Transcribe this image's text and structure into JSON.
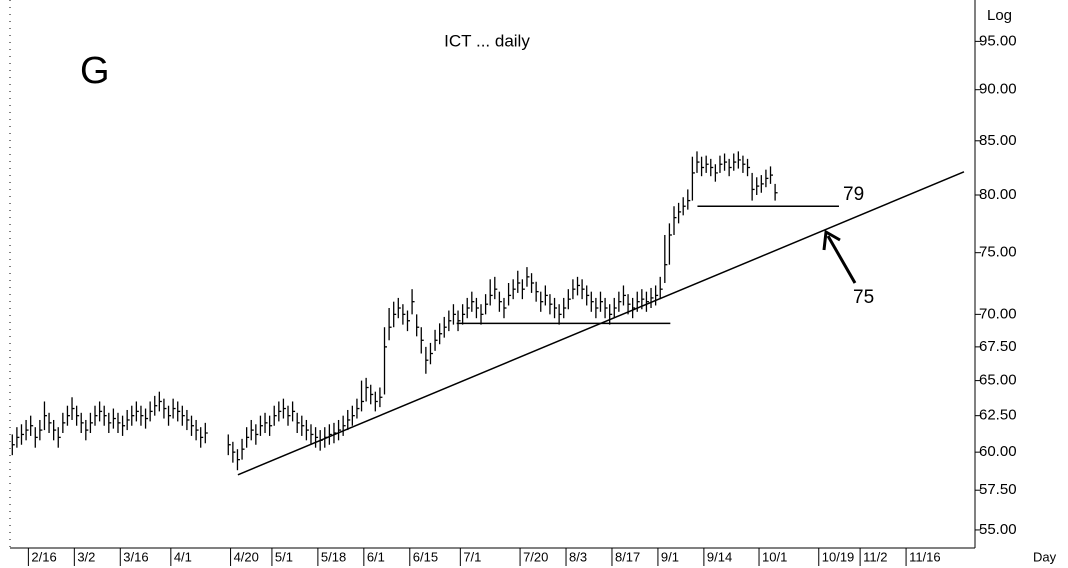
{
  "chart_data": {
    "type": "hlc",
    "title": "ICT ... daily",
    "label": "G",
    "y_axis_label": "Log",
    "x_axis_label": "Day",
    "log_scale": true,
    "color": "#000000",
    "xlim": [
      0,
      210
    ],
    "ylim": [
      53.9,
      99.5
    ],
    "xticks": [
      {
        "value": 4,
        "label": "2/16"
      },
      {
        "value": 14,
        "label": "3/2"
      },
      {
        "value": 24,
        "label": "3/16"
      },
      {
        "value": 35,
        "label": "4/1"
      },
      {
        "value": 48,
        "label": "4/20"
      },
      {
        "value": 57,
        "label": "5/1"
      },
      {
        "value": 67,
        "label": "5/18"
      },
      {
        "value": 77,
        "label": "6/1"
      },
      {
        "value": 87,
        "label": "6/15"
      },
      {
        "value": 98,
        "label": "7/1"
      },
      {
        "value": 111,
        "label": "7/20"
      },
      {
        "value": 121,
        "label": "8/3"
      },
      {
        "value": 131,
        "label": "8/17"
      },
      {
        "value": 141,
        "label": "9/1"
      },
      {
        "value": 151,
        "label": "9/14"
      },
      {
        "value": 163,
        "label": "10/1"
      },
      {
        "value": 176,
        "label": "10/19"
      },
      {
        "value": 185,
        "label": "11/2"
      },
      {
        "value": 195,
        "label": "11/16"
      }
    ],
    "yticks": [
      {
        "value": 55,
        "label": "55.00"
      },
      {
        "value": 57.5,
        "label": "57.50"
      },
      {
        "value": 60,
        "label": "60.00"
      },
      {
        "value": 62.5,
        "label": "62.50"
      },
      {
        "value": 65,
        "label": "65.00"
      },
      {
        "value": 67.5,
        "label": "67.50"
      },
      {
        "value": 70,
        "label": "70.00"
      },
      {
        "value": 75,
        "label": "75.00"
      },
      {
        "value": 80,
        "label": "80.00"
      },
      {
        "value": 85,
        "label": "85.00"
      },
      {
        "value": 90,
        "label": "90.00"
      },
      {
        "value": 95,
        "label": "95.00"
      }
    ],
    "high": [
      61.2,
      61.7,
      61.9,
      62.2,
      62.5,
      61.7,
      62.2,
      63.5,
      62.7,
      62.2,
      61.7,
      62.7,
      63.2,
      63.8,
      63.2,
      62.7,
      62.2,
      62.7,
      63.2,
      63.5,
      63.2,
      62.7,
      63,
      62.7,
      62.5,
      62.9,
      63.2,
      63.5,
      63.2,
      63,
      63.5,
      63.9,
      64.2,
      63.7,
      63.2,
      63.7,
      63.5,
      63.2,
      62.9,
      62.5,
      62.2,
      61.7,
      62,
      null,
      null,
      null,
      null,
      61.2,
      60.7,
      60.2,
      60.9,
      61.7,
      62.2,
      61.9,
      62.5,
      62.7,
      62.5,
      63.2,
      63.5,
      63.7,
      63.2,
      63.5,
      62.7,
      62.5,
      62.2,
      61.9,
      61.7,
      61.5,
      61.7,
      61.9,
      62,
      62.2,
      62.5,
      62.9,
      63.2,
      63.7,
      65,
      65.2,
      64.7,
      64.2,
      64.5,
      69,
      70.5,
      71,
      71.3,
      70.8,
      70.3,
      72,
      70,
      69,
      67.5,
      67.8,
      68.8,
      69.3,
      69.8,
      70.3,
      70.8,
      70.3,
      70.8,
      71.3,
      71.8,
      71.3,
      70.8,
      71.6,
      72.8,
      73,
      71.8,
      71.3,
      72.5,
      72.8,
      73.5,
      72.8,
      73.8,
      73.3,
      72.6,
      71.8,
      72.3,
      71.6,
      71.3,
      70.8,
      71.3,
      72,
      72.8,
      73,
      72.8,
      72.3,
      71.8,
      71.3,
      71.8,
      71.3,
      70.8,
      71.3,
      71.8,
      72.3,
      71.6,
      71.3,
      71.8,
      72,
      71.8,
      72.1,
      72.3,
      73,
      76.5,
      77.5,
      79,
      79.3,
      79.8,
      80.5,
      83.5,
      84,
      83.5,
      83.6,
      83.3,
      82.8,
      83.6,
      83.8,
      83.3,
      83.8,
      84,
      83.6,
      83.3,
      82,
      81.6,
      81.8,
      82.3,
      82.6,
      81
    ],
    "low": [
      59.8,
      60.3,
      60.5,
      60.8,
      61.1,
      60.3,
      60.8,
      61.5,
      61.3,
      60.8,
      60.3,
      61.3,
      61.8,
      62.2,
      61.8,
      61.3,
      60.8,
      61.3,
      61.8,
      62.1,
      61.8,
      61.3,
      61.6,
      61.3,
      61.1,
      61.5,
      61.8,
      62.1,
      61.8,
      61.6,
      62.1,
      62.5,
      62.8,
      62.3,
      61.8,
      62.3,
      62.1,
      61.8,
      61.5,
      61.1,
      60.8,
      60.3,
      60.6,
      null,
      null,
      null,
      null,
      59.8,
      59.3,
      58.8,
      59.5,
      60.3,
      60.8,
      60.5,
      61.1,
      61.3,
      61.1,
      61.8,
      62.1,
      62.3,
      61.8,
      62.1,
      61.3,
      61.1,
      60.8,
      60.5,
      60.3,
      60.1,
      60.3,
      60.5,
      60.6,
      60.8,
      61.1,
      61.5,
      61.8,
      62.3,
      62.8,
      63.5,
      63.3,
      62.8,
      63.1,
      64,
      68,
      69,
      69.7,
      69.2,
      68.7,
      70,
      68.3,
      67,
      65.5,
      66.2,
      67.2,
      67.7,
      68.2,
      68.7,
      69.2,
      68.7,
      69.2,
      69.7,
      70.2,
      69.7,
      69.2,
      70,
      70.7,
      71.2,
      70.2,
      69.7,
      70.7,
      71.2,
      71.7,
      71.2,
      72.2,
      71.7,
      71,
      70.2,
      70.7,
      70,
      69.7,
      69.2,
      69.7,
      70.4,
      71.2,
      71.5,
      71.2,
      70.7,
      70.2,
      69.7,
      70.2,
      69.7,
      69.2,
      69.7,
      70.2,
      70.7,
      70,
      69.7,
      70.2,
      70.4,
      70.2,
      70.5,
      70.7,
      71.2,
      72.5,
      74,
      76.5,
      77.5,
      78.2,
      78.7,
      79.5,
      82,
      81.7,
      82,
      81.7,
      81.2,
      82,
      82.2,
      81.7,
      82.2,
      82.4,
      82,
      81.7,
      79.5,
      80,
      80.2,
      80.7,
      81,
      79.5
    ],
    "close": [
      60.5,
      61,
      61.2,
      61.5,
      61.8,
      61,
      61.5,
      62.5,
      62,
      61.5,
      61,
      62,
      62.5,
      63,
      62.5,
      62,
      61.5,
      62,
      62.5,
      62.8,
      62.5,
      62,
      62.3,
      62,
      61.8,
      62.2,
      62.5,
      62.8,
      62.5,
      62.3,
      62.8,
      63.2,
      63.5,
      63,
      62.5,
      63,
      62.8,
      62.5,
      62.2,
      61.8,
      61.5,
      61,
      61.3,
      null,
      null,
      null,
      null,
      60.5,
      60,
      59.5,
      60.2,
      61,
      61.5,
      61.2,
      61.8,
      62,
      61.8,
      62.5,
      62.8,
      63,
      62.5,
      62.8,
      62,
      61.8,
      61.5,
      61.2,
      61,
      60.8,
      61,
      61.2,
      61.3,
      61.5,
      61.8,
      62.2,
      62.5,
      63,
      63.5,
      64.5,
      64,
      63.5,
      63.8,
      67.5,
      69,
      70,
      70.5,
      70,
      69.5,
      71,
      69,
      68,
      66.5,
      67,
      68,
      68.5,
      69,
      69.5,
      70,
      69.5,
      70,
      70.5,
      71,
      70.5,
      70,
      70.8,
      71.5,
      72,
      71,
      70.5,
      71.5,
      72,
      72.5,
      72,
      73,
      72.5,
      71.8,
      71,
      71.5,
      70.8,
      70.5,
      70,
      70.5,
      71.2,
      72,
      72.3,
      72,
      71.5,
      71,
      70.5,
      71,
      70.5,
      70,
      70.5,
      71,
      71.5,
      70.8,
      70.5,
      71,
      71.2,
      71,
      71.3,
      71.5,
      72,
      74,
      76.5,
      78,
      78.5,
      79,
      79.5,
      82,
      83,
      82.5,
      82.8,
      82.5,
      82,
      82.8,
      83,
      82.5,
      83,
      83.2,
      82.8,
      82.5,
      80.5,
      80.8,
      81,
      81.5,
      81.8,
      80.2
    ],
    "lines": [
      {
        "x": [
          49.6,
          207.6
        ],
        "y": [
          58.5,
          82.1
        ]
      },
      {
        "x": [
          97.2,
          143.7
        ],
        "y": [
          69.3,
          69.3
        ]
      },
      {
        "x": [
          149.6,
          180.4
        ],
        "y": [
          79,
          79
        ]
      }
    ],
    "annotations": [
      "79",
      "75"
    ]
  }
}
